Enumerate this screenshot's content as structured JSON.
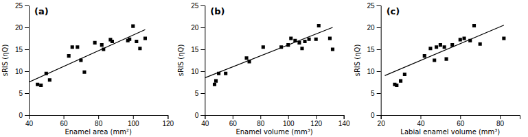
{
  "chart_data": [
    {
      "type": "scatter",
      "title": "(a)",
      "xlabel": "Enamel area (mm²)",
      "ylabel": "sRIS (ηQ)",
      "xlim": [
        40,
        120
      ],
      "xticks": [
        40,
        60,
        80,
        100,
        120
      ],
      "ylim": [
        0,
        25
      ],
      "yticks": [
        0,
        5,
        10,
        15,
        20,
        25
      ],
      "series": [
        {
          "type": "scatter",
          "marker": "square",
          "color": "black",
          "x": [
            45,
            47,
            50,
            52,
            63,
            65,
            68,
            70,
            72,
            78,
            82,
            83,
            87,
            88,
            97,
            98,
            100,
            102,
            104,
            107
          ],
          "values": [
            7.0,
            6.8,
            9.5,
            8.0,
            13.5,
            15.5,
            15.5,
            12.5,
            9.8,
            16.5,
            16.0,
            15.0,
            17.2,
            16.8,
            17.0,
            17.3,
            20.3,
            16.8,
            15.2,
            17.5
          ]
        },
        {
          "type": "line",
          "color": "black",
          "x": [
            40,
            107
          ],
          "values": [
            7.5,
            19.5
          ]
        }
      ]
    },
    {
      "type": "scatter",
      "title": "(b)",
      "xlabel": "Enamel volume (mm³)",
      "ylabel": "sRIS (ηQ)",
      "xlim": [
        40,
        140
      ],
      "xticks": [
        40,
        60,
        80,
        100,
        120,
        140
      ],
      "ylim": [
        0,
        25
      ],
      "yticks": [
        0,
        5,
        10,
        15,
        20,
        25
      ],
      "series": [
        {
          "type": "scatter",
          "marker": "square",
          "color": "black",
          "x": [
            47,
            48,
            50,
            55,
            70,
            72,
            82,
            95,
            100,
            102,
            105,
            108,
            110,
            112,
            115,
            120,
            122,
            130,
            132
          ],
          "values": [
            7.0,
            7.8,
            9.5,
            9.5,
            13.0,
            12.2,
            15.5,
            15.5,
            16.0,
            17.5,
            17.0,
            16.5,
            15.2,
            16.8,
            17.3,
            17.3,
            20.4,
            17.5,
            15.0
          ]
        },
        {
          "type": "line",
          "color": "black",
          "x": [
            40,
            132
          ],
          "values": [
            8.5,
            20.0
          ]
        }
      ]
    },
    {
      "type": "scatter",
      "title": "(c)",
      "xlabel": "Labial enamel volume (mm³)",
      "ylabel": "sRIS (ηQ)",
      "xlim": [
        20,
        90
      ],
      "xticks": [
        20,
        40,
        60,
        80
      ],
      "ylim": [
        0,
        25
      ],
      "yticks": [
        0,
        5,
        10,
        15,
        20,
        25
      ],
      "series": [
        {
          "type": "scatter",
          "marker": "square",
          "color": "black",
          "x": [
            27,
            28,
            30,
            32,
            42,
            45,
            47,
            48,
            50,
            52,
            53,
            56,
            60,
            62,
            65,
            67,
            70,
            82
          ],
          "values": [
            7.0,
            6.8,
            7.8,
            9.3,
            13.5,
            15.2,
            12.5,
            15.5,
            16.0,
            15.5,
            12.8,
            16.0,
            17.2,
            17.5,
            17.0,
            20.4,
            16.2,
            17.5
          ]
        },
        {
          "type": "line",
          "color": "black",
          "x": [
            22,
            82
          ],
          "values": [
            9.0,
            20.5
          ]
        }
      ]
    }
  ]
}
